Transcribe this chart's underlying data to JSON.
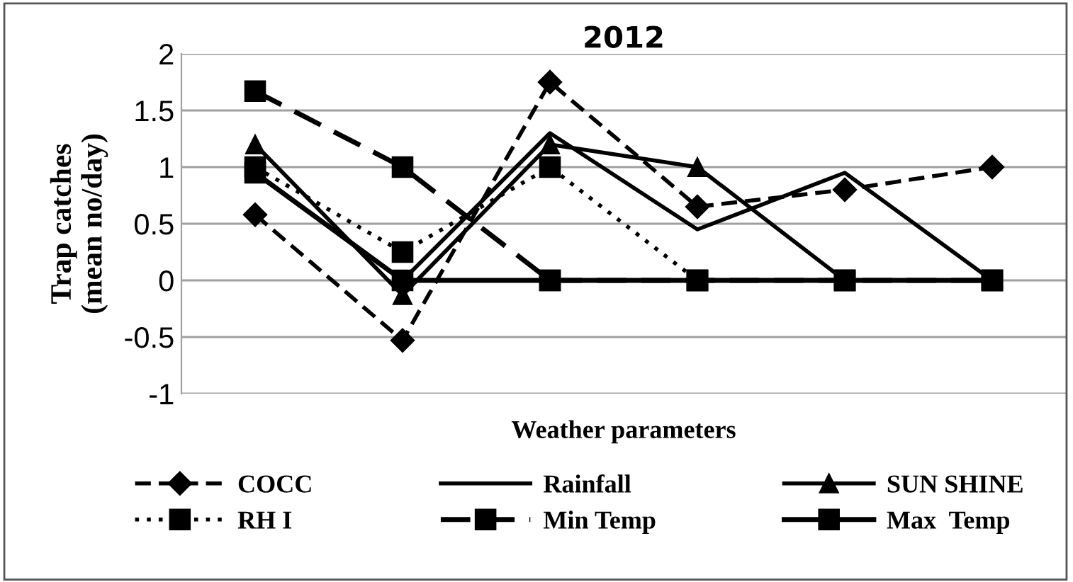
{
  "chart_data": {
    "type": "line",
    "title": "2012",
    "xlabel": "Weather parameters",
    "ylabel": "Trap catches\n(mean no/day)",
    "categories": [
      null,
      null,
      null,
      null,
      null,
      null
    ],
    "ylim": [
      -1,
      2
    ],
    "yticks": [
      -1,
      -0.5,
      0,
      0.5,
      1,
      1.5,
      2
    ],
    "grid": "y",
    "legend": "bottom",
    "series": [
      {
        "name": "COCC",
        "color": "#000000",
        "marker": "diamond",
        "line_style": "dashed",
        "values": [
          0.58,
          -0.53,
          1.75,
          0.65,
          0.8,
          1.0
        ]
      },
      {
        "name": "Rainfall",
        "color": "#000000",
        "line_style": "solid",
        "values": [
          0.95,
          0,
          1.3,
          0.45,
          0.95,
          0
        ]
      },
      {
        "name": "SUN SHINE",
        "color": "#000000",
        "marker": "triangle",
        "line_style": "solid",
        "values": [
          1.2,
          -0.13,
          1.2,
          1.0,
          0,
          0
        ]
      },
      {
        "name": "RH I",
        "color": "#000000",
        "marker": "square",
        "line_style": "dotted",
        "values": [
          1.0,
          0.25,
          1.0,
          0,
          0,
          0
        ]
      },
      {
        "name": "Min Temp",
        "color": "#000000",
        "marker": "square",
        "line_style": "dashed",
        "values": [
          1.67,
          1.0,
          0,
          0,
          0,
          0
        ]
      },
      {
        "name": "Max  Temp",
        "color": "#000000",
        "marker": "square",
        "line_style": "solid",
        "values": [
          0.95,
          0,
          0,
          0,
          0,
          0
        ]
      }
    ]
  }
}
